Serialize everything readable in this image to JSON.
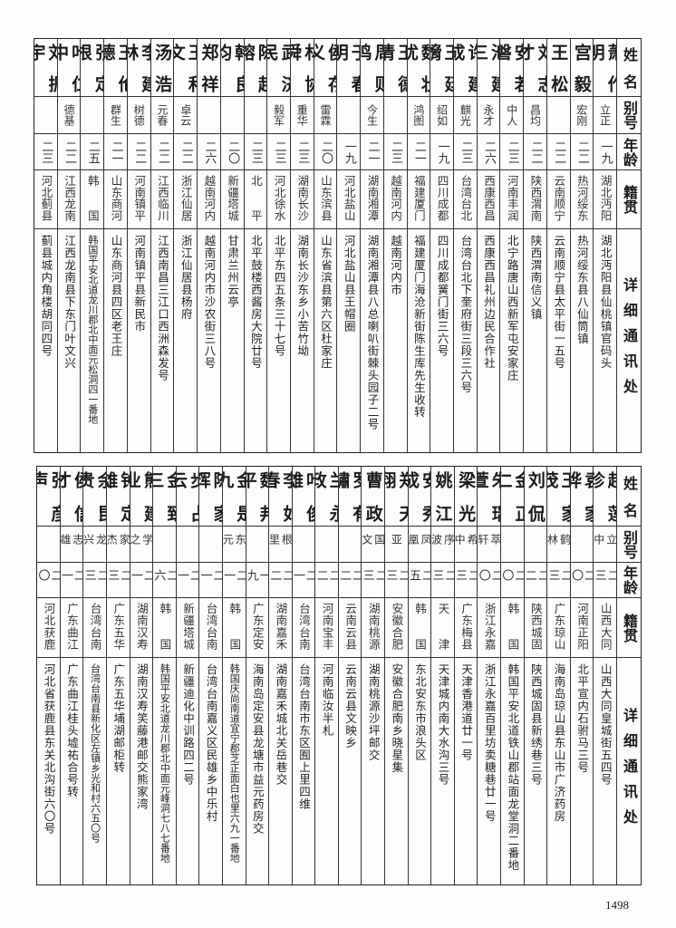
{
  "header": {
    "name": "姓名",
    "alias": "别号",
    "age": "年龄",
    "native": "籍贯",
    "address": "详细通讯处"
  },
  "top_table": {
    "rows": [
      {
        "name": "萧作明",
        "alias": "立正",
        "age": "一九",
        "native": "湖北沔阳",
        "address": "湖北沔阳县仙桃镇官码头"
      },
      {
        "name": "宫毅",
        "alias": "宏刚",
        "age": "二二",
        "native": "热河绥东",
        "address": "热河绥东县八仙筒镇"
      },
      {
        "name": "王松",
        "alias": "",
        "age": "二二",
        "native": "云南顺宁",
        "address": "云南顺宁县太平街一五号"
      },
      {
        "name": "刘志才",
        "alias": "昌均",
        "age": "二二",
        "native": "陕西渭南",
        "address": "陕西渭南信义镇"
      },
      {
        "name": "安若磐",
        "alias": "中人",
        "age": "二三",
        "native": "河南丰润",
        "address": "北宁路唐山西新军屯安家庄"
      },
      {
        "name": "池建三",
        "alias": "永才",
        "age": "二六",
        "native": "西康西昌",
        "address": "西康西昌礼州边民合作社"
      },
      {
        "name": "许建成",
        "alias": "麒光",
        "age": "二三",
        "native": "台湾台北",
        "address": "台湾台北下奎府街三段三六号"
      },
      {
        "name": "王廷熁",
        "alias": "绍如",
        "age": "一九",
        "native": "四川成都",
        "address": "四川成都黉门街三六号"
      },
      {
        "name": "魏壮犹",
        "alias": "鸿图",
        "age": "二一",
        "native": "福建厦门",
        "address": "福建厦门海沧新街陈生库先生收转"
      },
      {
        "name": "王德清",
        "alias": "",
        "age": "二三",
        "native": "越南河内",
        "address": "越南河内市"
      },
      {
        "name": "周则鸣",
        "alias": "今生",
        "age": "二一",
        "native": "湖南湘潭",
        "address": "湖南湘潭县八总喇叭街棘头园子二号"
      },
      {
        "name": "于春明",
        "alias": "",
        "age": "一九",
        "native": "河北盐山",
        "address": "河北盐山县王帽圈"
      },
      {
        "name": "侯存义",
        "alias": "雷霖",
        "age": "二〇",
        "native": "山东滨县",
        "address": "山东省滨县第六区杜家庄"
      },
      {
        "name": "林协舜",
        "alias": "重华",
        "age": "二三",
        "native": "湖南长沙",
        "address": "湖南长沙东乡小苦竹坳"
      },
      {
        "name": "武济民",
        "alias": "毅军",
        "age": "二三",
        "native": "河北徐水",
        "address": "北平东四五条三十七号"
      },
      {
        "name": "陈起瑢",
        "alias": "",
        "age": "二三",
        "native": "北平",
        "address": "北平鼓楼西酱房大院廿号"
      },
      {
        "name": "韩良均",
        "alias": "",
        "age": "二〇",
        "native": "新疆塔城",
        "address": "甘肃兰州云亭"
      },
      {
        "name": "郑祥",
        "alias": "",
        "age": "二六",
        "native": "越南河内",
        "address": "越南河内市沙农街三八号"
      },
      {
        "name": "王和文",
        "alias": "卓云",
        "age": "二二",
        "native": "浙江仙居",
        "address": "浙江仙居县杨府"
      },
      {
        "name": "汤浩",
        "alias": "元春",
        "age": "二二",
        "native": "江西临川",
        "address": "江西南昌三江口西洲森发号"
      },
      {
        "name": "李建林",
        "alias": "树德",
        "age": "二二",
        "native": "河南镇平",
        "address": "河南镇平县新民市"
      },
      {
        "name": "王伦德",
        "alias": "群生",
        "age": "二一",
        "native": "山东商河",
        "address": "山东商河县四区老王庄"
      },
      {
        "name": "张定根",
        "alias": "",
        "age": "二五",
        "native": "韩国",
        "address": "韩国平安北道龙川郡北中面元松洞四一番地"
      },
      {
        "name": "叶仁中",
        "alias": "德基",
        "age": "二二",
        "native": "江西龙南",
        "address": "江西龙南县下东门叶文兴"
      },
      {
        "name": "刘振宇",
        "alias": "",
        "age": "二三",
        "native": "河北蓟县",
        "address": "蓟县城内角楼胡同四号"
      }
    ]
  },
  "bottom_table": {
    "rows": [
      {
        "name": "赵莲珍",
        "alias": "立中",
        "age": "二三",
        "native": "山西大同",
        "address": "山西大同皇城街五四号"
      },
      {
        "name": "袁家骅",
        "alias": "",
        "age": "二〇",
        "native": "河南正阳",
        "address": "北平宣内石驸马三号"
      },
      {
        "name": "王家茂",
        "alias": "鹤林",
        "age": "二三",
        "native": "广东琼山",
        "address": "海南岛琼山县东山市广济药房"
      },
      {
        "name": "刘侃",
        "alias": "",
        "age": "二二",
        "native": "陕西城固",
        "address": "陕西城固县新绣巷三号"
      },
      {
        "name": "金正仁",
        "alias": "",
        "age": "二〇",
        "native": "韩国",
        "address": "韩国平安北道铁山郡站面龙堂洞二番地"
      },
      {
        "name": "朱瑞萱",
        "alias": "萃轩",
        "age": "二〇",
        "native": "浙江永嘉",
        "address": "浙江永嘉百里坊卖糖巷廿一号"
      },
      {
        "name": "梁光",
        "alias": "希中",
        "age": "二三",
        "native": "广东梅县",
        "address": "天津香港道廿一号"
      },
      {
        "name": "姚江",
        "alias": "序波",
        "age": "二三",
        "native": "天津",
        "address": "天津城内南大水沟三号"
      },
      {
        "name": "安秀成",
        "alias": "凤凰",
        "age": "二五",
        "native": "韩国",
        "address": "东北安东市浪头区"
      },
      {
        "name": "郑天翔",
        "alias": "亚",
        "age": "二三",
        "native": "安徽合肥",
        "address": "安徽合肥南乡晓星集"
      },
      {
        "name": "曹政",
        "alias": "国文",
        "age": "二三",
        "native": "湖南桃源",
        "address": "湖南桃源沙坪邮交"
      },
      {
        "name": "罗有繡",
        "alias": "",
        "age": "二二",
        "native": "云南云县",
        "address": "云南云县文映乡"
      },
      {
        "name": "兰永政",
        "alias": "",
        "age": "二二",
        "native": "河南宝丰",
        "address": "河南临汝半札"
      },
      {
        "name": "叶俊雄",
        "alias": "",
        "age": "二一",
        "native": "台湾台南",
        "address": "台湾台南市东区囿上里四维"
      },
      {
        "name": "李如春",
        "alias": "根里",
        "age": "二二",
        "native": "湖南嘉禾",
        "address": "湖南嘉禾城北关岳巷交"
      },
      {
        "name": "魏邦平",
        "alias": "",
        "age": "一九",
        "native": "广东定安",
        "address": "海南岛定安县龙塘市益元药房交"
      },
      {
        "name": "金是九",
        "alias": "东元",
        "age": "二一",
        "native": "韩国",
        "address": "韩国庆尚南道宜宁郡芝正面白也里六九一番地"
      },
      {
        "name": "陈家辉",
        "alias": "",
        "age": "二一",
        "native": "台湾台南",
        "address": "台湾台南嘉义区民雄乡中乐村"
      },
      {
        "name": "步占云",
        "alias": "",
        "age": "二一",
        "native": "新疆塔城",
        "address": "新疆迪化中训路四二号"
      },
      {
        "name": "金致三",
        "alias": "",
        "age": "二六",
        "native": "韩国",
        "address": "韩国平安北道龙川郡北中面元峰洞七八七番地"
      },
      {
        "name": "熊建业",
        "alias": "学之",
        "age": "二一",
        "native": "湖南汉寿",
        "address": "湖南汉寿笑藤港邮交熊家湾"
      },
      {
        "name": "钟定雄",
        "alias": "家杰",
        "age": "二三",
        "native": "广东五华",
        "address": "广东五华埔湖邮柜转"
      },
      {
        "name": "余昆贵",
        "alias": "龙兴",
        "age": "二三",
        "native": "台湾台南",
        "address": "台湾台南县新化区左镇乡光和村六五〇号"
      },
      {
        "name": "侯信才",
        "alias": "志雄",
        "age": "二一",
        "native": "广东曲江",
        "address": "广东曲江桂头墟祐合号转"
      },
      {
        "name": "张彦声",
        "alias": "",
        "age": "二〇",
        "native": "河北获鹿",
        "address": "河北省获鹿县东关北沟街六〇号"
      }
    ]
  },
  "page_number": "1498"
}
